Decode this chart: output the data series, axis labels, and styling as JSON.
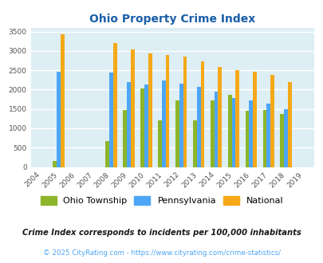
{
  "title": "Ohio Property Crime Index",
  "years": [
    2004,
    2005,
    2006,
    2007,
    2008,
    2009,
    2010,
    2011,
    2012,
    2013,
    2014,
    2015,
    2016,
    2017,
    2018,
    2019
  ],
  "ohio_township": [
    0,
    150,
    0,
    0,
    680,
    1470,
    2030,
    1210,
    1720,
    1210,
    1720,
    1870,
    1460,
    1480,
    1380,
    0
  ],
  "pennsylvania": [
    0,
    2460,
    0,
    0,
    2430,
    2200,
    2130,
    2230,
    2160,
    2070,
    1940,
    1790,
    1710,
    1630,
    1490,
    0
  ],
  "national": [
    0,
    3420,
    0,
    0,
    3200,
    3040,
    2940,
    2890,
    2860,
    2720,
    2590,
    2500,
    2470,
    2380,
    2200,
    0
  ],
  "ohio_color": "#8db52a",
  "penn_color": "#4da6f5",
  "natl_color": "#f5a818",
  "bg_color": "#ddeef5",
  "ylim": [
    0,
    3600
  ],
  "yticks": [
    0,
    500,
    1000,
    1500,
    2000,
    2500,
    3000,
    3500
  ],
  "legend_labels": [
    "Ohio Township",
    "Pennsylvania",
    "National"
  ],
  "subtitle": "Crime Index corresponds to incidents per 100,000 inhabitants",
  "footer": "© 2025 CityRating.com - https://www.cityrating.com/crime-statistics/",
  "title_color": "#1a5ea8",
  "subtitle_color": "#1a1a1a",
  "footer_color": "#4da6f5",
  "bar_width": 0.22
}
